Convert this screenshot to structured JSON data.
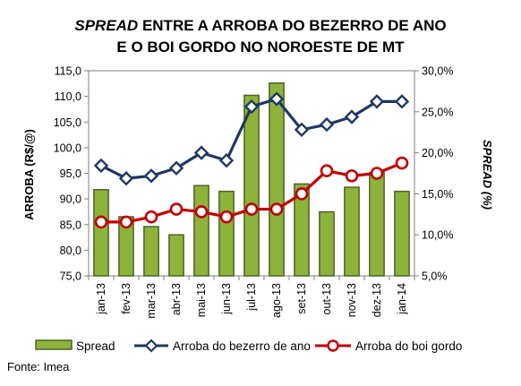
{
  "chart_data": {
    "type": "bar+line",
    "title_italic": "SPREAD",
    "title_rest": " ENTRE A ARROBA DO BEZERRO DE ANO",
    "title_line2": "E O BOI GORDO NO NOROESTE DE MT",
    "ylabel": "ARROBA (R$/@)",
    "y2label": "SPREAD (%)",
    "ylim": [
      75,
      115
    ],
    "y2lim": [
      5,
      30
    ],
    "y_ticks": [
      "75,0",
      "80,0",
      "85,0",
      "90,0",
      "95,0",
      "100,0",
      "105,0",
      "110,0",
      "115,0"
    ],
    "y2_ticks": [
      "5,0%",
      "10,0%",
      "15,0%",
      "20,0%",
      "25,0%",
      "30,0%"
    ],
    "categories": [
      "jan-13",
      "fev-13",
      "mar-13",
      "abr-13",
      "mai-13",
      "jun-13",
      "jul-13",
      "ago-13",
      "set-13",
      "out-13",
      "nov-13",
      "dez-13",
      "jan-14"
    ],
    "series": [
      {
        "name": "Spread",
        "kind": "bar",
        "axis": "right",
        "color": "#8db33a",
        "values": [
          15.5,
          12.2,
          11.0,
          10.0,
          16.0,
          15.3,
          27.0,
          28.5,
          16.2,
          12.8,
          15.8,
          17.6,
          15.3
        ]
      },
      {
        "name": "Arroba do bezerro de ano",
        "kind": "line",
        "axis": "left",
        "color": "#1f3864",
        "values": [
          96.5,
          94.0,
          94.5,
          96.0,
          99.0,
          97.5,
          108.0,
          109.5,
          103.5,
          104.5,
          106.0,
          109.0,
          109.0
        ]
      },
      {
        "name": "Arroba do boi gordo",
        "kind": "line",
        "axis": "left",
        "color": "#c00000",
        "values": [
          85.5,
          85.5,
          86.5,
          88.0,
          87.5,
          86.5,
          88.0,
          88.0,
          91.0,
          95.5,
          94.5,
          95.0,
          97.0
        ]
      }
    ]
  },
  "source": "Fonte: Imea"
}
